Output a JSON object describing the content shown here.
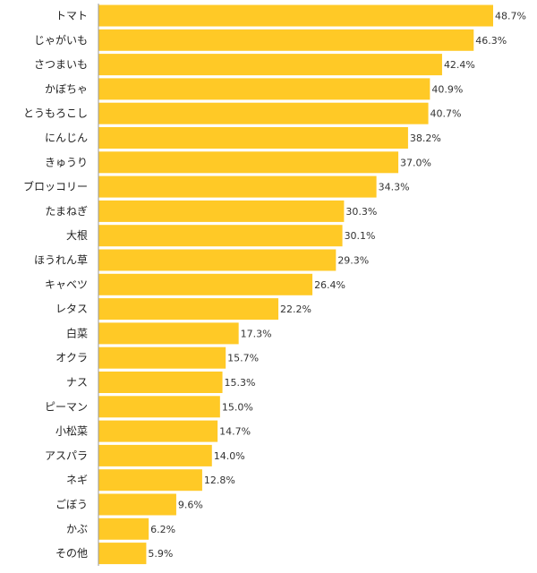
{
  "chart_data": {
    "type": "bar",
    "orientation": "horizontal",
    "categories": [
      "トマト",
      "じゃがいも",
      "さつまいも",
      "かぼちゃ",
      "とうもろこし",
      "にんじん",
      "きゅうり",
      "ブロッコリー",
      "たまねぎ",
      "大根",
      "ほうれん草",
      "キャベツ",
      "レタス",
      "白菜",
      "オクラ",
      "ナス",
      "ピーマン",
      "小松菜",
      "アスパラ",
      "ネギ",
      "ごぼう",
      "かぶ",
      "その他"
    ],
    "values": [
      48.7,
      46.3,
      42.4,
      40.9,
      40.7,
      38.2,
      37.0,
      34.3,
      30.3,
      30.1,
      29.3,
      26.4,
      22.2,
      17.3,
      15.7,
      15.3,
      15.0,
      14.7,
      14.0,
      12.8,
      9.6,
      6.2,
      5.9
    ],
    "value_labels": [
      "48.7%",
      "46.3%",
      "42.4%",
      "40.9%",
      "40.7%",
      "38.2%",
      "37.0%",
      "34.3%",
      "30.3%",
      "30.1%",
      "29.3%",
      "26.4%",
      "22.2%",
      "17.3%",
      "15.7%",
      "15.3%",
      "15.0%",
      "14.7%",
      "14.0%",
      "12.8%",
      "9.6%",
      "6.2%",
      "5.9%"
    ],
    "xlim": [
      0,
      50
    ],
    "bar_color": "#FFC926",
    "grid": false,
    "legend": "none",
    "title": "",
    "xlabel": "",
    "ylabel": ""
  }
}
